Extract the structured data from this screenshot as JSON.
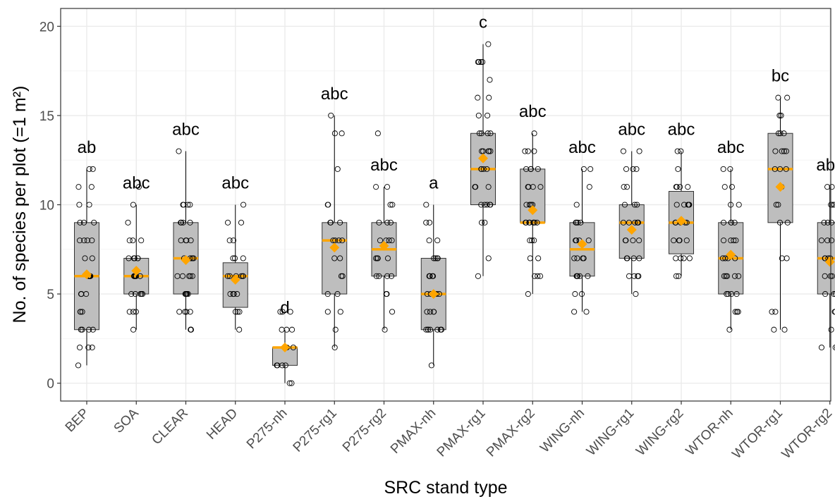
{
  "chart_data": {
    "type": "box",
    "title": "",
    "xlabel": "SRC stand type",
    "ylabel": "No. of species per plot (=1 m²)",
    "ylim": [
      -1,
      21
    ],
    "yticks": [
      0,
      5,
      10,
      15,
      20
    ],
    "grid": true,
    "legend": "none",
    "colors": {
      "box_fill": "#bebebe",
      "median_and_mean": "#ffa500",
      "points": "#000000",
      "grid_major": "#ebebeb",
      "grid_minor": "#f5f5f5",
      "panel_border": "#333333",
      "tick_text": "#4d4d4d"
    },
    "categories": [
      "BEP",
      "SOA",
      "CLEAR",
      "HEAD",
      "P275-nh",
      "P275-rg1",
      "P275-rg2",
      "PMAX-nh",
      "PMAX-rg1",
      "PMAX-rg2",
      "WING-nh",
      "WING-rg1",
      "WING-rg2",
      "WTOR-nh",
      "WTOR-rg1",
      "WTOR-rg2"
    ],
    "groups": [
      {
        "category": "BEP",
        "letter": "ab",
        "min": 1,
        "q1": 3,
        "median": 6,
        "q3": 9,
        "max": 12,
        "mean": 6.1,
        "points": [
          1,
          2,
          2,
          2,
          3,
          3,
          3,
          3,
          4,
          4,
          4,
          5,
          5,
          5,
          6,
          6,
          6,
          6,
          7,
          7,
          8,
          8,
          8,
          8,
          9,
          9,
          9,
          10,
          10,
          11,
          11,
          12,
          12
        ]
      },
      {
        "category": "SOA",
        "letter": "abc",
        "min": 3,
        "q1": 5,
        "median": 6,
        "q3": 7,
        "max": 10,
        "mean": 6.3,
        "points": [
          3,
          4,
          4,
          4,
          5,
          5,
          5,
          5,
          5,
          6,
          6,
          6,
          6,
          6,
          6,
          7,
          7,
          7,
          7,
          7,
          7,
          8,
          8,
          8,
          9,
          10,
          11
        ]
      },
      {
        "category": "CLEAR",
        "letter": "abc",
        "min": 3,
        "q1": 5,
        "median": 7,
        "q3": 9,
        "max": 13,
        "mean": 6.9,
        "points": [
          3,
          3,
          3,
          4,
          4,
          4,
          4,
          5,
          5,
          5,
          5,
          5,
          6,
          6,
          6,
          6,
          6,
          7,
          7,
          7,
          7,
          7,
          8,
          8,
          8,
          8,
          9,
          9,
          9,
          9,
          10,
          10,
          10,
          10,
          13
        ]
      },
      {
        "category": "HEAD",
        "letter": "abc",
        "min": 3,
        "q1": 4.25,
        "median": 6,
        "q3": 6.75,
        "max": 10,
        "mean": 5.8,
        "points": [
          3,
          4,
          4,
          4,
          5,
          5,
          5,
          5,
          6,
          6,
          6,
          6,
          6,
          6,
          7,
          7,
          7,
          8,
          8,
          9,
          9,
          10
        ]
      },
      {
        "category": "P275-nh",
        "letter": "d",
        "min": 0,
        "q1": 1,
        "median": 2,
        "q3": 2,
        "max": 3,
        "mean": 2,
        "points": [
          0,
          0,
          1,
          1,
          1,
          1,
          2,
          2,
          2,
          2,
          3,
          3,
          3,
          4,
          4,
          4
        ]
      },
      {
        "category": "P275-rg1",
        "letter": "abc",
        "min": 2,
        "q1": 5,
        "median": 8,
        "q3": 9,
        "max": 15,
        "mean": 7.6,
        "points": [
          2,
          3,
          4,
          4,
          5,
          5,
          6,
          6,
          7,
          7,
          8,
          8,
          8,
          8,
          9,
          9,
          9,
          10,
          10,
          12,
          14,
          14,
          15
        ]
      },
      {
        "category": "P275-rg2",
        "letter": "abc",
        "min": 3,
        "q1": 6,
        "median": 7.5,
        "q3": 9,
        "max": 11,
        "mean": 7.7,
        "points": [
          3,
          4,
          5,
          5,
          6,
          6,
          6,
          6,
          7,
          7,
          7,
          7,
          8,
          8,
          8,
          8,
          9,
          9,
          9,
          10,
          10,
          11,
          11,
          14
        ]
      },
      {
        "category": "PMAX-nh",
        "letter": "a",
        "min": 1,
        "q1": 3,
        "median": 5,
        "q3": 7,
        "max": 10,
        "mean": 5,
        "points": [
          1,
          3,
          3,
          3,
          3,
          3,
          3,
          3,
          4,
          4,
          4,
          4,
          5,
          5,
          5,
          5,
          5,
          5,
          6,
          6,
          6,
          6,
          6,
          7,
          7,
          7,
          7,
          8,
          8,
          9,
          9,
          10
        ]
      },
      {
        "category": "PMAX-rg1",
        "letter": "c",
        "min": 6,
        "q1": 10,
        "median": 12,
        "q3": 14,
        "max": 19,
        "mean": 12.6,
        "points": [
          6,
          7,
          9,
          9,
          10,
          10,
          10,
          10,
          10,
          10,
          11,
          11,
          11,
          12,
          12,
          12,
          12,
          13,
          13,
          13,
          13,
          13,
          14,
          14,
          14,
          14,
          15,
          15,
          16,
          16,
          17,
          18,
          18,
          18,
          18,
          19
        ]
      },
      {
        "category": "PMAX-rg2",
        "letter": "abc",
        "min": 5,
        "q1": 9,
        "median": 9,
        "q3": 12,
        "max": 14,
        "mean": 9.7,
        "points": [
          5,
          6,
          6,
          6,
          7,
          7,
          8,
          8,
          8,
          9,
          9,
          9,
          9,
          9,
          9,
          9,
          9,
          10,
          10,
          10,
          10,
          10,
          11,
          11,
          11,
          11,
          12,
          12,
          12,
          12,
          12,
          13,
          13,
          13,
          14
        ]
      },
      {
        "category": "WING-nh",
        "letter": "abc",
        "min": 4,
        "q1": 6,
        "median": 7.5,
        "q3": 9,
        "max": 12,
        "mean": 7.8,
        "points": [
          4,
          4,
          5,
          5,
          6,
          6,
          6,
          6,
          6,
          7,
          7,
          7,
          7,
          8,
          8,
          8,
          8,
          9,
          9,
          9,
          9,
          10,
          11,
          12,
          12
        ]
      },
      {
        "category": "WING-rg1",
        "letter": "abc",
        "min": 5,
        "q1": 7,
        "median": 9,
        "q3": 10,
        "max": 13,
        "mean": 8.6,
        "points": [
          5,
          6,
          6,
          6,
          6,
          7,
          7,
          7,
          7,
          8,
          8,
          8,
          8,
          9,
          9,
          9,
          9,
          9,
          10,
          10,
          10,
          11,
          11,
          12,
          12,
          12,
          13,
          13
        ]
      },
      {
        "category": "WING-rg2",
        "letter": "abc",
        "min": 6,
        "q1": 7.25,
        "median": 9,
        "q3": 10.75,
        "max": 13,
        "mean": 9.1,
        "points": [
          6,
          6,
          7,
          7,
          7,
          7,
          8,
          8,
          8,
          8,
          9,
          9,
          9,
          9,
          9,
          10,
          10,
          10,
          10,
          10,
          11,
          11,
          11,
          11,
          12,
          13,
          13
        ]
      },
      {
        "category": "WTOR-nh",
        "letter": "abc",
        "min": 3,
        "q1": 5,
        "median": 7,
        "q3": 9,
        "max": 12,
        "mean": 7.2,
        "points": [
          3,
          4,
          4,
          4,
          5,
          5,
          5,
          5,
          6,
          6,
          6,
          6,
          6,
          7,
          7,
          7,
          7,
          8,
          8,
          8,
          8,
          9,
          9,
          9,
          9,
          10,
          10,
          11,
          11,
          12,
          12
        ]
      },
      {
        "category": "WTOR-rg1",
        "letter": "bc",
        "min": 3,
        "q1": 9,
        "median": 12,
        "q3": 14,
        "max": 16,
        "mean": 11,
        "points": [
          3,
          3,
          4,
          4,
          7,
          7,
          9,
          9,
          10,
          10,
          11,
          12,
          12,
          12,
          13,
          13,
          13,
          13,
          14,
          14,
          14,
          15,
          15,
          16,
          16
        ]
      },
      {
        "category": "WTOR-rg2",
        "letter": "abc",
        "min": 2,
        "q1": 5,
        "median": 7,
        "q3": 9,
        "max": 11,
        "mean": 6.8,
        "points": [
          2,
          2,
          2,
          3,
          4,
          4,
          5,
          5,
          5,
          6,
          6,
          6,
          7,
          7,
          7,
          7,
          8,
          8,
          8,
          9,
          9,
          9,
          10,
          10,
          10,
          11,
          11
        ]
      }
    ]
  }
}
